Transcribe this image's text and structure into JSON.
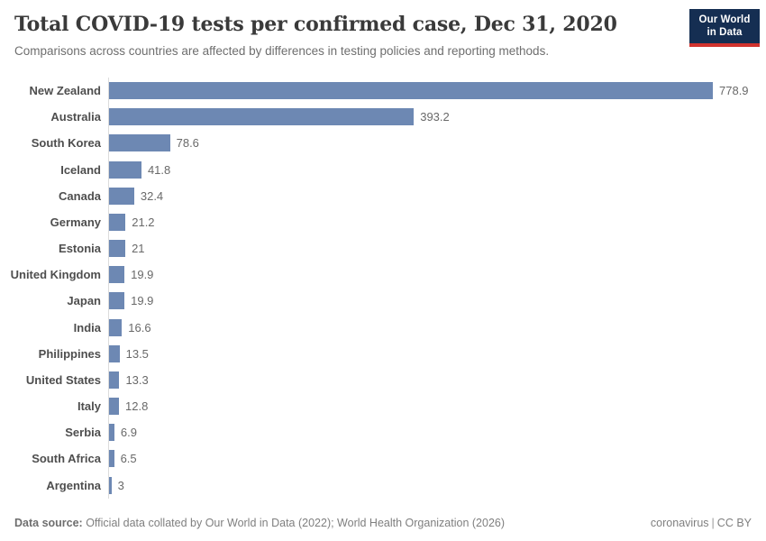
{
  "header": {
    "title": "Total COVID-19 tests per confirmed case, Dec 31, 2020",
    "subtitle": "Comparisons across countries are affected by differences in testing policies and reporting methods.",
    "logo": {
      "line1": "Our World",
      "line2": "in Data"
    }
  },
  "chart_data": {
    "type": "bar",
    "orientation": "horizontal",
    "title": "Total COVID-19 tests per confirmed case, Dec 31, 2020",
    "xlabel": "",
    "ylabel": "",
    "grid": false,
    "xlim": [
      0,
      778.9
    ],
    "bar_color": "#6d88b3",
    "categories": [
      "New Zealand",
      "Australia",
      "South Korea",
      "Iceland",
      "Canada",
      "Germany",
      "Estonia",
      "United Kingdom",
      "Japan",
      "India",
      "Philippines",
      "United States",
      "Italy",
      "Serbia",
      "South Africa",
      "Argentina"
    ],
    "values": [
      778.9,
      393.2,
      78.6,
      41.8,
      32.4,
      21.2,
      21,
      19.9,
      19.9,
      16.6,
      13.5,
      13.3,
      12.8,
      6.9,
      6.5,
      3
    ],
    "value_labels": [
      "778.9",
      "393.2",
      "78.6",
      "41.8",
      "32.4",
      "21.2",
      "21",
      "19.9",
      "19.9",
      "16.6",
      "13.5",
      "13.3",
      "12.8",
      "6.9",
      "6.5",
      "3"
    ]
  },
  "footer": {
    "source_label": "Data source:",
    "source_text": " Official data collated by Our World in Data (2022); World Health Organization (2026)",
    "link1": "coronavirus",
    "separator": "|",
    "link2": "CC BY"
  },
  "colors": {
    "bar": "#6d88b3",
    "axis_line": "#dcdcdc",
    "title_text": "#3a3a3a",
    "logo_background": "#152e52",
    "logo_accent": "#d1332e"
  }
}
